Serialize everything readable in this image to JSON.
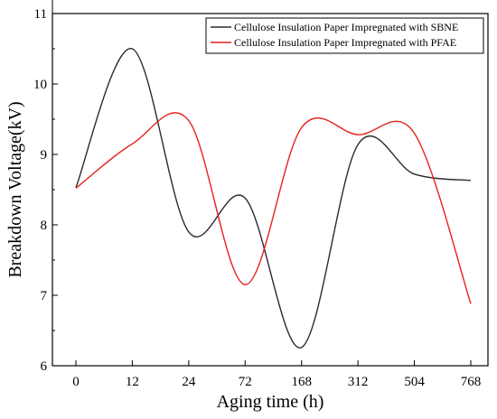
{
  "chart_data": {
    "type": "line",
    "title": "",
    "xlabel": "Aging time (h)",
    "ylabel": "Breakdown Voltage(kV)",
    "categories": [
      "0",
      "12",
      "24",
      "72",
      "168",
      "312",
      "504",
      "768"
    ],
    "ylim": [
      6,
      11
    ],
    "yticks": [
      6,
      7,
      8,
      9,
      10,
      11
    ],
    "grid": false,
    "legend_position": "top-right",
    "series": [
      {
        "name": "Cellulose Insulation Paper Impregnated with SBNE",
        "color": "#2b2b2b",
        "values": [
          8.53,
          10.5,
          7.9,
          8.38,
          6.26,
          9.14,
          8.72,
          8.63
        ]
      },
      {
        "name": "Cellulose Insulation Paper Impregnated with PFAE",
        "color": "#e8201a",
        "values": [
          8.52,
          9.15,
          9.48,
          7.15,
          9.38,
          9.28,
          9.3,
          6.88
        ]
      }
    ]
  }
}
